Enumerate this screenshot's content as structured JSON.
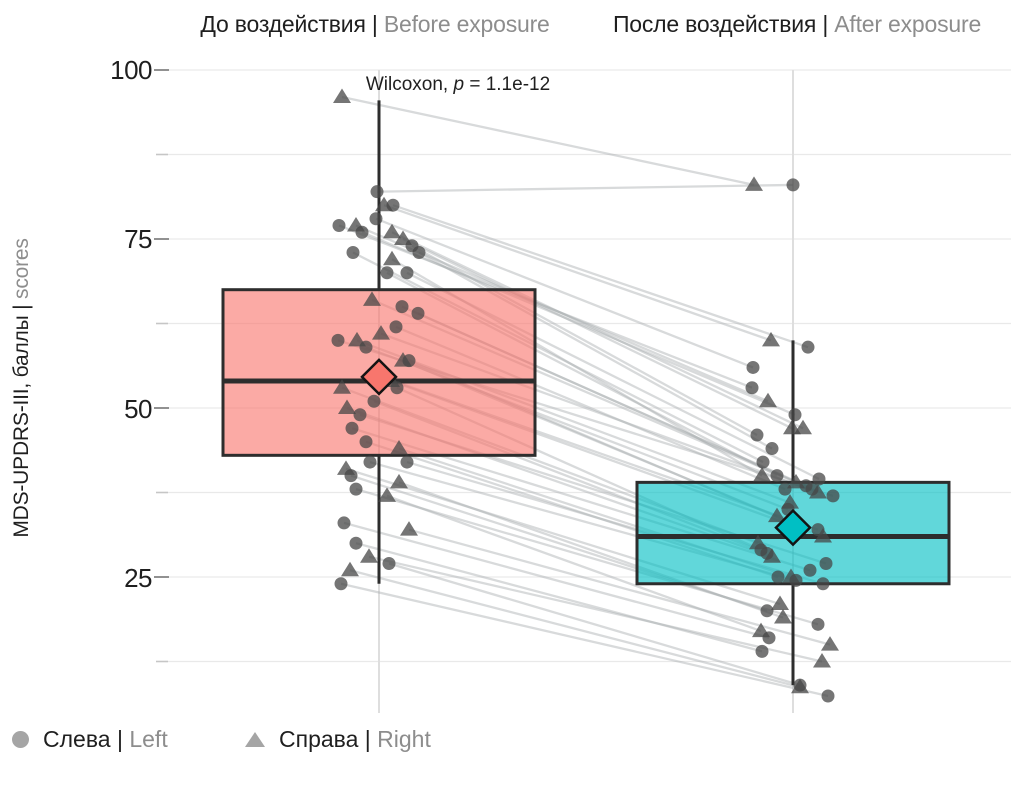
{
  "titles": {
    "before_ru": "До воздействия",
    "before_sep": " | ",
    "before_en": "Before exposure",
    "after_ru": "После воздействия",
    "after_sep": " | ",
    "after_en": "After exposure"
  },
  "annotation": {
    "part1": "Wilcoxon, ",
    "italic": "p",
    "part2": " = 1.1e-12"
  },
  "y_axis": {
    "title_ru": "MDS-UPDRS-III, баллы",
    "title_sep": " | ",
    "title_en": "scores",
    "ticks": [
      "100",
      "75",
      "50",
      "25"
    ]
  },
  "legend": {
    "left_ru": "Слева",
    "left_sep": " | ",
    "left_en": "Left",
    "right_ru": "Справа",
    "right_sep": " | ",
    "right_en": "Right"
  },
  "colors": {
    "before": "#F8766D",
    "after": "#00BFC4",
    "box_stroke": "#2d2d2d",
    "point": "#474747",
    "pair_line": "#a8adaf",
    "grid": "#e9e9e9",
    "axis_line": "#dedede",
    "tick_major": "#919191",
    "tick_minor": "#c6c6c6",
    "text_dark": "#1f1f1f",
    "text_gray": "#8d8d8d",
    "legend_marker": "#a5a5a5"
  },
  "chart_data": {
    "type": "paired-boxplot-scatter",
    "title": "",
    "x_labels": [
      "До воздействия | Before exposure",
      "После воздействия | After exposure"
    ],
    "ylabel": "MDS-UPDRS-III, баллы | scores",
    "ylim": [
      5,
      103
    ],
    "y_ticks_major": [
      100,
      75,
      50,
      25
    ],
    "y_ticks_minor": [
      87.5,
      62.5,
      37.5,
      12.5
    ],
    "grid": true,
    "p_value_label": "Wilcoxon, p = 1.1e-12",
    "legend_position": "bottom",
    "legend_items": [
      {
        "shape": "circle",
        "label": "Слева | Left"
      },
      {
        "shape": "triangle",
        "label": "Справа | Right"
      }
    ],
    "groups": [
      {
        "id": "before",
        "label": "До воздействия | Before exposure",
        "color": "#F8766D",
        "fill_opacity": 0.62,
        "box": {
          "q1": 43,
          "median": 54,
          "q3": 67.5,
          "whisker_low": 24,
          "whisker_high": 95.5,
          "mean": 54.6
        }
      },
      {
        "id": "after",
        "label": "После воздействия | After exposure",
        "color": "#00BFC4",
        "fill_opacity": 0.62,
        "box": {
          "q1": 24,
          "median": 31,
          "q3": 39,
          "whisker_low": 9,
          "whisker_high": 60,
          "mean": 32.3
        }
      }
    ],
    "pairs": [
      {
        "s": "R",
        "b": 96,
        "a": 83,
        "jb": -37,
        "ja": -39
      },
      {
        "s": "L",
        "b": 82,
        "a": 83,
        "jb": -2,
        "ja": 0
      },
      {
        "s": "R",
        "b": 80,
        "a": 60,
        "jb": 5,
        "ja": -22
      },
      {
        "s": "L",
        "b": 80,
        "a": 59,
        "jb": 14,
        "ja": 15
      },
      {
        "s": "L",
        "b": 78,
        "a": 56,
        "jb": -3,
        "ja": -40
      },
      {
        "s": "L",
        "b": 77,
        "a": 53,
        "jb": -40,
        "ja": -41
      },
      {
        "s": "R",
        "b": 77,
        "a": 51,
        "jb": -23,
        "ja": -25
      },
      {
        "s": "L",
        "b": 76,
        "a": 49,
        "jb": -17,
        "ja": 2
      },
      {
        "s": "R",
        "b": 76,
        "a": 47,
        "jb": 13,
        "ja": 10
      },
      {
        "s": "R",
        "b": 75,
        "a": 47,
        "jb": 24,
        "ja": -1
      },
      {
        "s": "L",
        "b": 74,
        "a": 46,
        "jb": 33,
        "ja": -36
      },
      {
        "s": "L",
        "b": 73,
        "a": 44,
        "jb": 40,
        "ja": -21
      },
      {
        "s": "L",
        "b": 73,
        "a": 42,
        "jb": -26,
        "ja": -30
      },
      {
        "s": "R",
        "b": 72,
        "a": 40,
        "jb": 13,
        "ja": -31
      },
      {
        "s": "L",
        "b": 70,
        "a": 40,
        "jb": 8,
        "ja": -16
      },
      {
        "s": "L",
        "b": 70,
        "a": 39.5,
        "jb": 28,
        "ja": 26
      },
      {
        "s": "R",
        "b": 66,
        "a": 39,
        "jb": -7,
        "ja": 3
      },
      {
        "s": "L",
        "b": 65,
        "a": 38.5,
        "jb": 23,
        "ja": 13
      },
      {
        "s": "L",
        "b": 64,
        "a": 38,
        "jb": 39,
        "ja": 19
      },
      {
        "s": "L",
        "b": 62,
        "a": 38,
        "jb": 17,
        "ja": -8
      },
      {
        "s": "R",
        "b": 61,
        "a": 37.5,
        "jb": 2,
        "ja": 25
      },
      {
        "s": "L",
        "b": 60,
        "a": 37,
        "jb": -41,
        "ja": 40
      },
      {
        "s": "R",
        "b": 60,
        "a": 36,
        "jb": -22,
        "ja": -3
      },
      {
        "s": "L",
        "b": 59,
        "a": 35,
        "jb": -13,
        "ja": -5
      },
      {
        "s": "R",
        "b": 57,
        "a": 34,
        "jb": 24,
        "ja": -16
      },
      {
        "s": "L",
        "b": 57,
        "a": 33,
        "jb": 30,
        "ja": -2
      },
      {
        "s": "L",
        "b": 55,
        "a": 32,
        "jb": -5,
        "ja": 25
      },
      {
        "s": "R",
        "b": 54,
        "a": 31,
        "jb": 12,
        "ja": 30
      },
      {
        "s": "R",
        "b": 53,
        "a": 30,
        "jb": -37,
        "ja": -35
      },
      {
        "s": "L",
        "b": 53,
        "a": 29,
        "jb": 18,
        "ja": -32
      },
      {
        "s": "L",
        "b": 51,
        "a": 28.5,
        "jb": -5,
        "ja": -26
      },
      {
        "s": "R",
        "b": 50,
        "a": 28,
        "jb": -32,
        "ja": -21
      },
      {
        "s": "L",
        "b": 49,
        "a": 27,
        "jb": -19,
        "ja": 33
      },
      {
        "s": "L",
        "b": 47,
        "a": 26,
        "jb": -27,
        "ja": 17
      },
      {
        "s": "L",
        "b": 45,
        "a": 25,
        "jb": -13,
        "ja": -15
      },
      {
        "s": "R",
        "b": 44,
        "a": 25,
        "jb": 20,
        "ja": -2
      },
      {
        "s": "L",
        "b": 42,
        "a": 24.5,
        "jb": -9,
        "ja": 3
      },
      {
        "s": "L",
        "b": 42,
        "a": 24,
        "jb": 28,
        "ja": 30
      },
      {
        "s": "R",
        "b": 41,
        "a": 21,
        "jb": -33,
        "ja": -13
      },
      {
        "s": "L",
        "b": 40,
        "a": 20,
        "jb": -28,
        "ja": -26
      },
      {
        "s": "R",
        "b": 39,
        "a": 19,
        "jb": 20,
        "ja": -10
      },
      {
        "s": "L",
        "b": 38,
        "a": 18,
        "jb": -23,
        "ja": 25
      },
      {
        "s": "R",
        "b": 37,
        "a": 17,
        "jb": 8,
        "ja": -32
      },
      {
        "s": "L",
        "b": 33,
        "a": 16,
        "jb": -35,
        "ja": -24
      },
      {
        "s": "R",
        "b": 32,
        "a": 15,
        "jb": 30,
        "ja": 37
      },
      {
        "s": "L",
        "b": 30,
        "a": 14,
        "jb": -23,
        "ja": -31
      },
      {
        "s": "R",
        "b": 28,
        "a": 12.5,
        "jb": -10,
        "ja": 29
      },
      {
        "s": "L",
        "b": 27,
        "a": 9,
        "jb": 10,
        "ja": 7
      },
      {
        "s": "R",
        "b": 26,
        "a": 8.7,
        "jb": -29,
        "ja": 7
      },
      {
        "s": "L",
        "b": 24,
        "a": 7.4,
        "jb": -38,
        "ja": 35
      }
    ]
  }
}
